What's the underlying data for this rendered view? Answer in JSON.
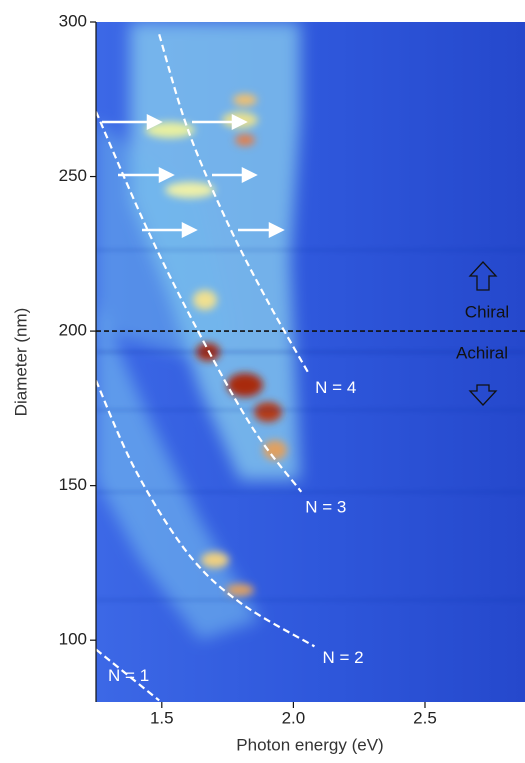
{
  "chart_data": {
    "type": "line",
    "x_label": "Photon energy (eV)",
    "y_label": "Diameter (nm)",
    "annotations": [
      "Chiral",
      "Achiral"
    ],
    "xlim": [
      1.25,
      2.88
    ],
    "ylim": [
      80,
      300
    ],
    "xticks": [
      1.5,
      {
        "value": 2,
        "label": "2.0"
      },
      2.5
    ],
    "yticks": [
      100,
      150,
      200,
      250,
      300
    ],
    "reference_line": {
      "y": 200,
      "color": "#111111"
    },
    "series": [
      {
        "name": "N = 4",
        "color": "#ffffff",
        "x": [
          1.49,
          1.6,
          1.75,
          1.9,
          2.06
        ],
        "values": [
          296,
          265,
          235,
          210,
          186
        ]
      },
      {
        "name": "N = 3",
        "color": "#ffffff",
        "x": [
          1.25,
          1.45,
          1.65,
          1.85,
          2.03
        ],
        "values": [
          271,
          232,
          198,
          168,
          148
        ]
      },
      {
        "name": "N = 2",
        "color": "#ffffff",
        "x": [
          1.25,
          1.4,
          1.6,
          1.8,
          2.08
        ],
        "values": [
          184,
          155,
          128,
          112,
          98
        ]
      },
      {
        "name": "N = 1",
        "color": "#ffffff",
        "x": [
          1.25,
          1.49
        ],
        "values": [
          97,
          80.5
        ]
      }
    ]
  }
}
